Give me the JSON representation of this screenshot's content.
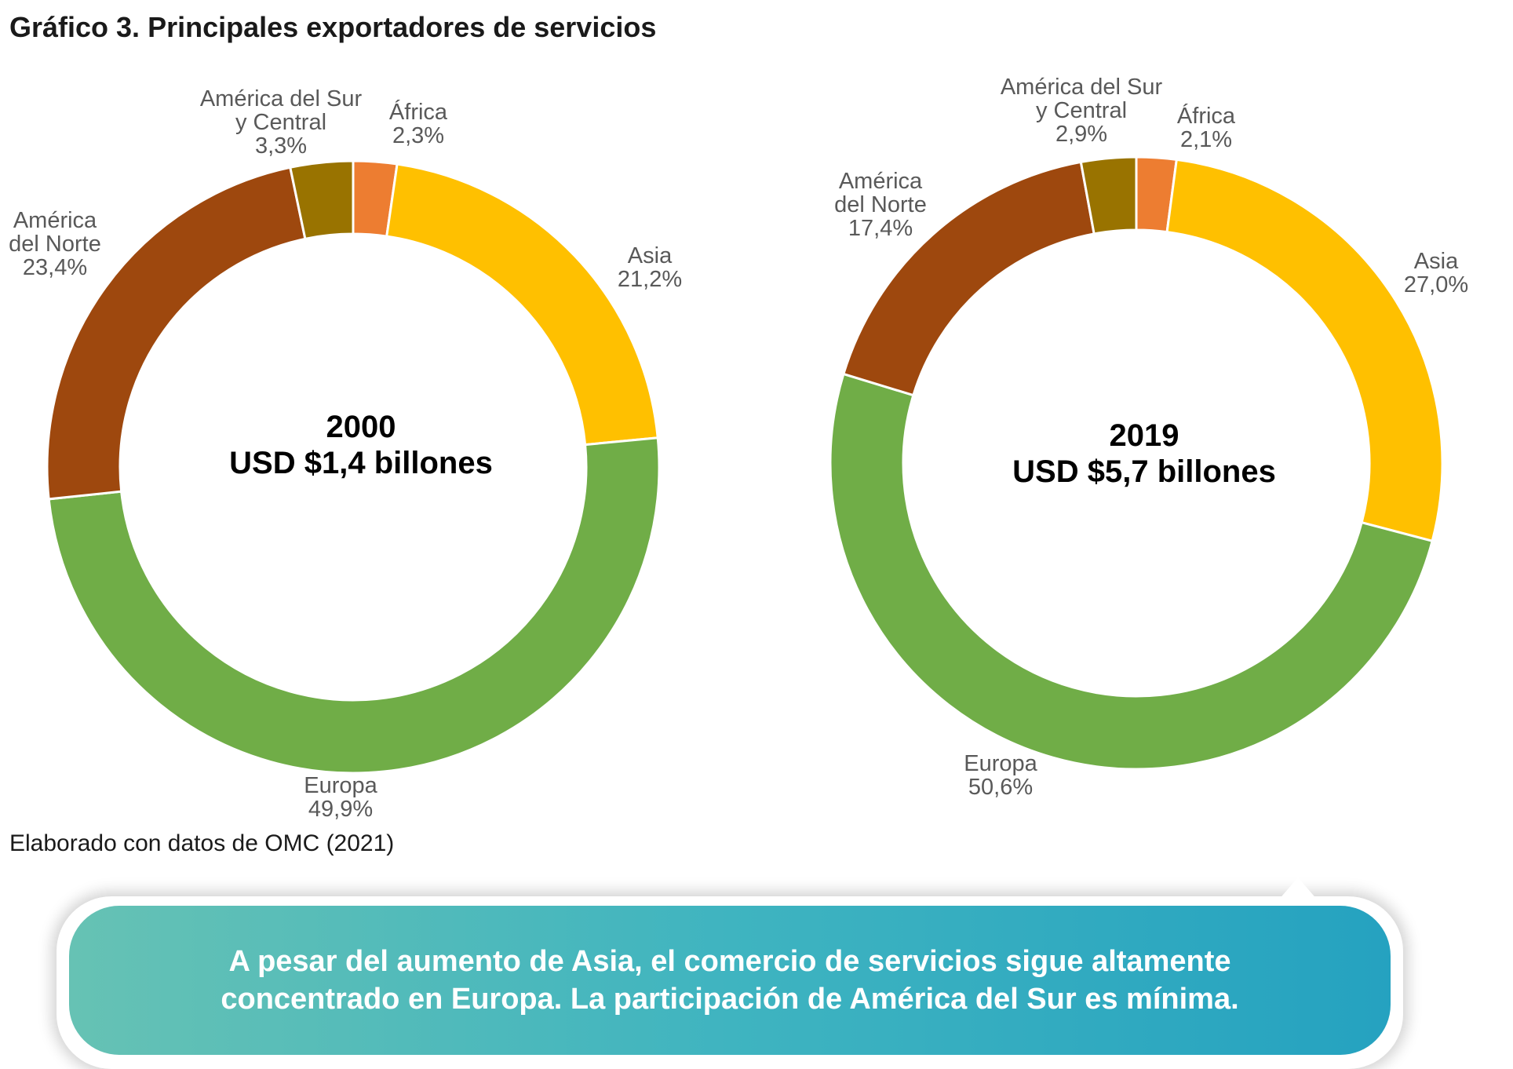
{
  "title": "Gráfico 3. Principales exportadores de servicios",
  "source": "Elaborado con datos de OMC (2021)",
  "callout": {
    "line1": "A pesar del aumento de Asia, el comercio de servicios sigue altamente",
    "line2": "concentrado en Europa. La participación de América del Sur es mínima."
  },
  "colors": {
    "África": "#ed7d31",
    "Asia": "#ffc000",
    "Europa": "#70ad47",
    "América del Norte": "#9e480e",
    "América del Sur y Central": "#997300"
  },
  "chart_data": [
    {
      "type": "pie",
      "donut": true,
      "center_label": [
        "2000",
        "USD $1,4 billones"
      ],
      "categories": [
        "África",
        "Asia",
        "Europa",
        "América del Norte",
        "América del Sur y Central"
      ],
      "values": [
        2.3,
        21.2,
        49.9,
        23.4,
        3.3
      ],
      "labels": [
        {
          "lines": [
            "África",
            "2,3%"
          ]
        },
        {
          "lines": [
            "Asia",
            "21,2%"
          ]
        },
        {
          "lines": [
            "Europa",
            "49,9%"
          ]
        },
        {
          "lines": [
            "América",
            "del Norte",
            "23,4%"
          ]
        },
        {
          "lines": [
            "América del Sur",
            "y Central",
            "3,3%"
          ]
        }
      ]
    },
    {
      "type": "pie",
      "donut": true,
      "center_label": [
        "2019",
        "USD $5,7 billones"
      ],
      "categories": [
        "África",
        "Asia",
        "Europa",
        "América del Norte",
        "América del Sur y Central"
      ],
      "values": [
        2.1,
        27.0,
        50.6,
        17.4,
        2.9
      ],
      "labels": [
        {
          "lines": [
            "África",
            "2,1%"
          ]
        },
        {
          "lines": [
            "Asia",
            "27,0%"
          ]
        },
        {
          "lines": [
            "Europa",
            "50,6%"
          ]
        },
        {
          "lines": [
            "América",
            "del Norte",
            "17,4%"
          ]
        },
        {
          "lines": [
            "América del Sur",
            "y Central",
            "2,9%"
          ]
        }
      ]
    }
  ]
}
